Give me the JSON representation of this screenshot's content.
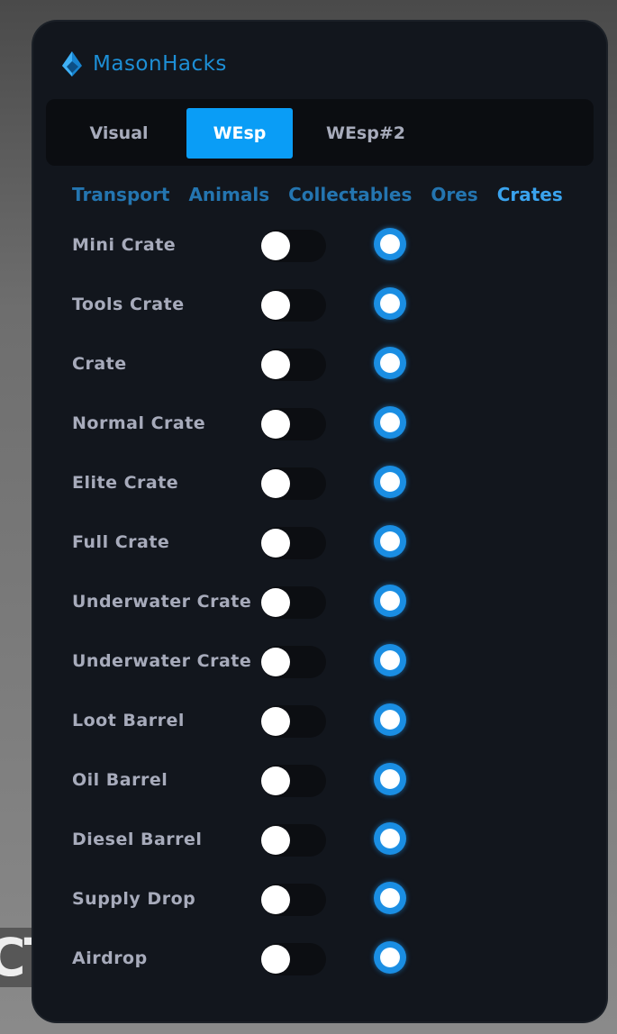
{
  "background": {
    "text": "CT"
  },
  "app": {
    "title": "MasonHacks",
    "accent": "#0a9df6"
  },
  "tabs": [
    {
      "label": "Visual",
      "active": false
    },
    {
      "label": "WEsp",
      "active": true
    },
    {
      "label": "WEsp#2",
      "active": false
    }
  ],
  "subtabs": [
    {
      "label": "Transport",
      "active": false
    },
    {
      "label": "Animals",
      "active": false
    },
    {
      "label": "Collectables",
      "active": false
    },
    {
      "label": "Ores",
      "active": false
    },
    {
      "label": "Crates",
      "active": true
    }
  ],
  "rows": [
    {
      "label": "Mini Crate",
      "toggle": false,
      "radio": true
    },
    {
      "label": "Tools Crate",
      "toggle": false,
      "radio": true
    },
    {
      "label": "Crate",
      "toggle": false,
      "radio": true
    },
    {
      "label": "Normal Crate",
      "toggle": false,
      "radio": true
    },
    {
      "label": "Elite Crate",
      "toggle": false,
      "radio": true
    },
    {
      "label": "Full Crate",
      "toggle": false,
      "radio": true
    },
    {
      "label": "Underwater Crate",
      "toggle": false,
      "radio": true
    },
    {
      "label": "Underwater Crate",
      "toggle": false,
      "radio": true
    },
    {
      "label": "Loot Barrel",
      "toggle": false,
      "radio": true
    },
    {
      "label": "Oil Barrel",
      "toggle": false,
      "radio": true
    },
    {
      "label": "Diesel Barrel",
      "toggle": false,
      "radio": true
    },
    {
      "label": "Supply Drop",
      "toggle": false,
      "radio": true
    },
    {
      "label": "Airdrop",
      "toggle": false,
      "radio": true
    }
  ]
}
